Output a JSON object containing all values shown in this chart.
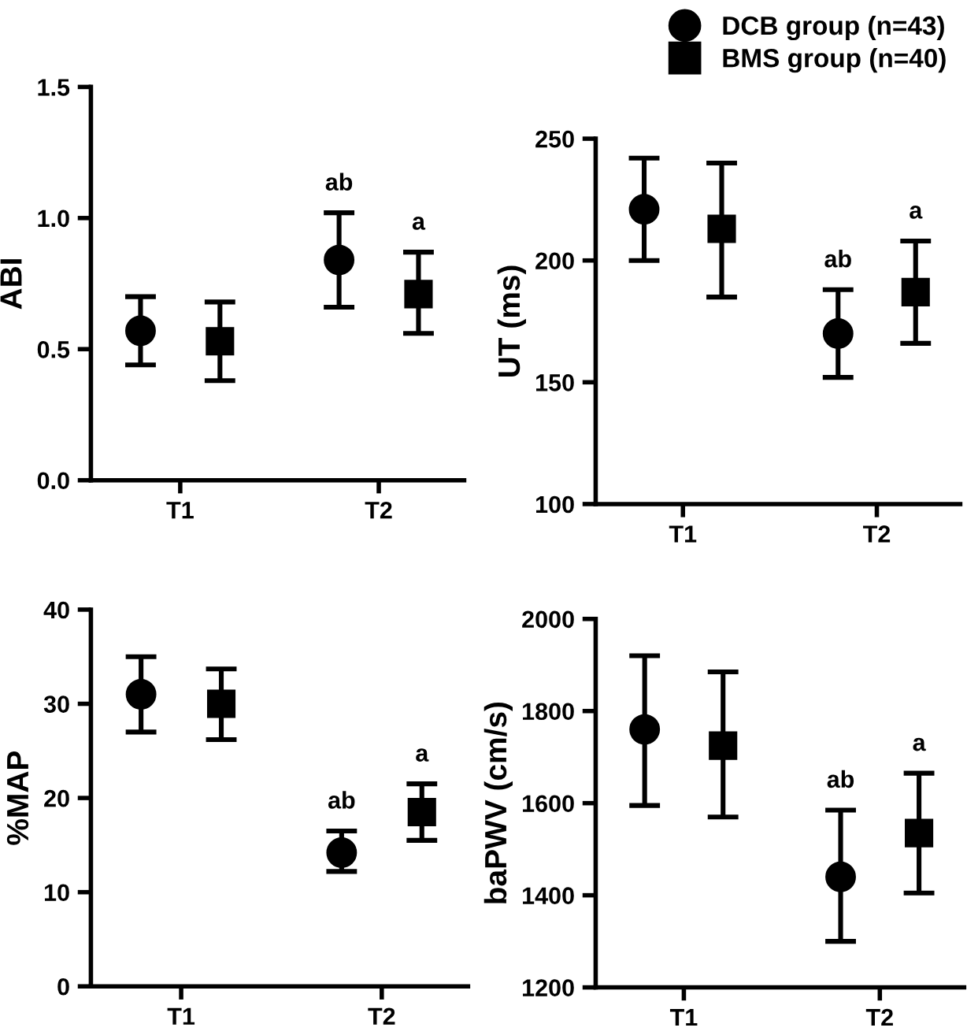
{
  "chart_data": [
    {
      "type": "scatter",
      "ylabel": "ABI",
      "categories": [
        "T1",
        "T2"
      ],
      "ylim": [
        0.0,
        1.5
      ],
      "yticks": [
        {
          "value": 0.0,
          "label": "0.0"
        },
        {
          "value": 0.5,
          "label": "0.5"
        },
        {
          "value": 1.0,
          "label": "1.0"
        },
        {
          "value": 1.5,
          "label": "1.5"
        }
      ],
      "grid": false,
      "legend": "top right",
      "series": [
        {
          "name": "DCB group (n=43)",
          "color": "#000000",
          "marker": "circle",
          "values": [
            0.57,
            0.84
          ],
          "errors": [
            [
              0.44,
              0.7
            ],
            [
              0.66,
              1.02
            ]
          ]
        },
        {
          "name": "BMS group (n=40)",
          "color": "#000000",
          "marker": "square",
          "values": [
            0.53,
            0.71
          ],
          "errors": [
            [
              0.38,
              0.68
            ],
            [
              0.56,
              0.87
            ]
          ]
        }
      ],
      "annotations": [
        "ab",
        "a"
      ]
    },
    {
      "type": "scatter",
      "ylabel": "UT (ms)",
      "categories": [
        "T1",
        "T2"
      ],
      "ylim": [
        100,
        250
      ],
      "yticks": [
        100,
        150,
        200,
        250
      ],
      "grid": false,
      "legend": false,
      "series": [
        {
          "color": "#000000",
          "marker": "circle",
          "values": [
            221,
            170
          ],
          "errors": [
            [
              200,
              242
            ],
            [
              152,
              188
            ]
          ]
        },
        {
          "color": "#000000",
          "marker": "square",
          "values": [
            213,
            187
          ],
          "errors": [
            [
              185,
              240
            ],
            [
              166,
              208
            ]
          ]
        }
      ],
      "annotations": [
        "ab",
        "a"
      ]
    },
    {
      "type": "scatter",
      "ylabel": "%MAP",
      "categories": [
        "T1",
        "T2"
      ],
      "ylim": [
        0,
        40
      ],
      "yticks": [
        0,
        10,
        20,
        30,
        40
      ],
      "grid": false,
      "legend": false,
      "series": [
        {
          "color": "#000000",
          "marker": "circle",
          "values": [
            31,
            14.2
          ],
          "errors": [
            [
              27,
              35
            ],
            [
              12.2,
              16.5
            ]
          ]
        },
        {
          "color": "#000000",
          "marker": "square",
          "values": [
            30,
            18.5
          ],
          "errors": [
            [
              26.2,
              33.7
            ],
            [
              15.5,
              21.5
            ]
          ]
        }
      ],
      "annotations": [
        "ab",
        "a"
      ]
    },
    {
      "type": "scatter",
      "ylabel": "baPWV (cm/s)",
      "categories": [
        "T1",
        "T2"
      ],
      "ylim": [
        1200,
        2000
      ],
      "yticks": [
        1200,
        1400,
        1600,
        1800,
        2000
      ],
      "grid": false,
      "legend": false,
      "series": [
        {
          "color": "#000000",
          "marker": "circle",
          "values": [
            1760,
            1440
          ],
          "errors": [
            [
              1595,
              1920
            ],
            [
              1300,
              1585
            ]
          ]
        },
        {
          "color": "#000000",
          "marker": "square",
          "values": [
            1725,
            1535
          ],
          "errors": [
            [
              1570,
              1885
            ],
            [
              1405,
              1665
            ]
          ]
        }
      ],
      "annotations": [
        "ab",
        "a"
      ]
    }
  ]
}
